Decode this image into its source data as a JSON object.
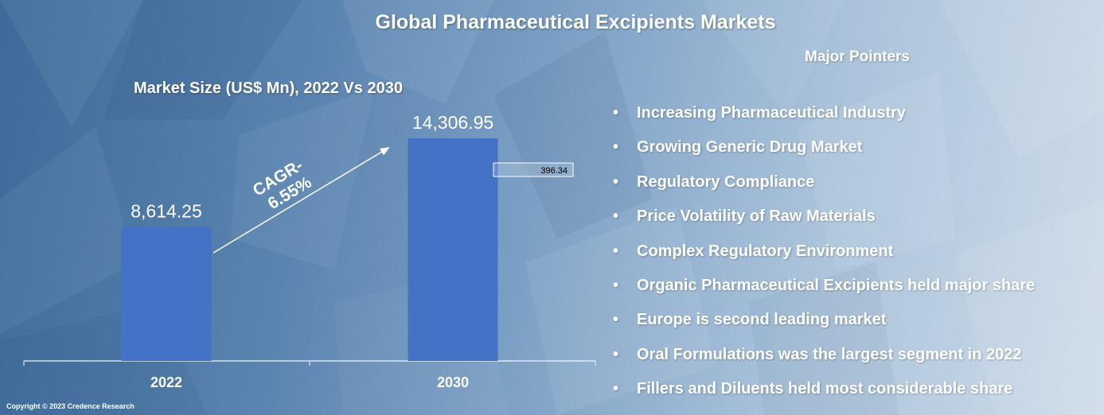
{
  "title": "Global Pharmaceutical Excipients Markets",
  "chart_data": {
    "type": "bar",
    "title": "Market Size (US$ Mn), 2022 Vs 2030",
    "categories": [
      "2022",
      "2030"
    ],
    "values": [
      8614.25,
      14306.95
    ],
    "value_labels": [
      "8,614.25",
      "14,306.95"
    ],
    "bar_color": "#4472c4",
    "cagr_label_line1": "CAGR-",
    "cagr_label_line2": "6.55%",
    "callout_label": "396.34",
    "grid": false,
    "legend": "none"
  },
  "pointers": {
    "title": "Major Pointers",
    "bullet": "•",
    "items": [
      "Increasing Pharmaceutical Industry",
      "Growing Generic Drug Market",
      "Regulatory Compliance",
      "Price Volatility of Raw Materials",
      "Complex Regulatory Environment",
      "Organic Pharmaceutical Excipients held major share",
      "Europe is second leading market",
      "Oral Formulations was the largest segment in 2022",
      "Fillers and Diluents held most considerable share"
    ]
  },
  "copyright": "Copyright © 2023 Credence Research"
}
